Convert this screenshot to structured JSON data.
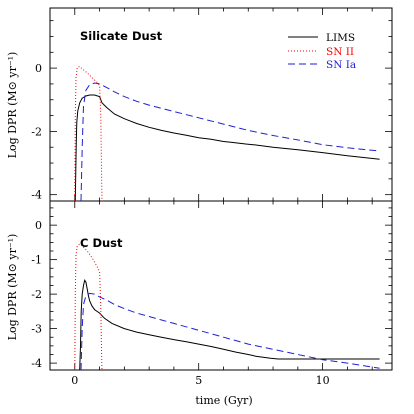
{
  "colors": {
    "lims": "#000000",
    "sn2": "#ff0000",
    "sn1a": "#1f1fd6"
  },
  "chart_data": [
    {
      "type": "line",
      "title": "Silicate Dust",
      "xlabel": "",
      "ylabel": "Log DPR (M⊙ yr⁻¹)",
      "xlim": [
        -1,
        12.8
      ],
      "ylim": [
        -4.2,
        1.9
      ],
      "xticks": [
        0,
        5,
        10
      ],
      "yticks": [
        -4,
        -2,
        0
      ],
      "yminor": 0.5,
      "xminor": 1,
      "legend": "top-right",
      "series": [
        {
          "name": "LIMS",
          "color": "#000000",
          "style": "solid",
          "x": [
            0.02,
            0.04,
            0.06,
            0.08,
            0.12,
            0.2,
            0.3,
            0.45,
            0.6,
            0.8,
            1.0,
            1.1,
            1.3,
            1.6,
            2.0,
            2.5,
            3.0,
            3.5,
            4.0,
            4.5,
            5.0,
            5.5,
            6.0,
            6.3,
            6.6,
            6.9,
            7.2,
            7.5,
            8.0,
            9.0,
            10.0,
            11.0,
            12.3
          ],
          "y": [
            -4.2,
            -3.2,
            -2.3,
            -1.7,
            -1.35,
            -1.1,
            -0.95,
            -0.88,
            -0.85,
            -0.85,
            -0.9,
            -1.1,
            -1.25,
            -1.45,
            -1.6,
            -1.75,
            -1.87,
            -1.97,
            -2.05,
            -2.12,
            -2.2,
            -2.25,
            -2.32,
            -2.34,
            -2.37,
            -2.4,
            -2.42,
            -2.45,
            -2.5,
            -2.58,
            -2.67,
            -2.77,
            -2.88
          ]
        },
        {
          "name": "SN II",
          "color": "#ff0000",
          "style": "dotted",
          "x": [
            0.0,
            0.02,
            0.05,
            0.1,
            0.2,
            0.3,
            0.5,
            0.7,
            0.9,
            1.0,
            1.05,
            1.08,
            1.1
          ],
          "y": [
            -4.2,
            -1.5,
            -0.3,
            0.02,
            0.05,
            -0.02,
            -0.15,
            -0.3,
            -0.45,
            -0.55,
            -1.5,
            -3.2,
            -4.2
          ]
        },
        {
          "name": "SN Ia",
          "color": "#1f1fd6",
          "style": "dashed",
          "x": [
            0.25,
            0.3,
            0.35,
            0.45,
            0.6,
            0.8,
            1.0,
            1.3,
            1.6,
            2.0,
            2.5,
            3.0,
            3.5,
            4.0,
            5.0,
            6.0,
            7.0,
            8.0,
            9.0,
            10.0,
            11.0,
            12.3
          ],
          "y": [
            -4.2,
            -2.5,
            -1.2,
            -0.7,
            -0.52,
            -0.47,
            -0.5,
            -0.62,
            -0.75,
            -0.9,
            -1.05,
            -1.17,
            -1.27,
            -1.37,
            -1.57,
            -1.77,
            -1.97,
            -2.13,
            -2.27,
            -2.42,
            -2.52,
            -2.62
          ]
        }
      ]
    },
    {
      "type": "line",
      "title": "C Dust",
      "xlabel": "time (Gyr)",
      "ylabel": "Log DPR (M⊙ yr⁻¹)",
      "xlim": [
        -1,
        12.8
      ],
      "ylim": [
        -4.2,
        0.7
      ],
      "xticks": [
        0,
        5,
        10
      ],
      "yticks": [
        -4,
        -3,
        -2,
        -1,
        0
      ],
      "yminor": 0.25,
      "xminor": 1,
      "series": [
        {
          "name": "LIMS",
          "color": "#000000",
          "style": "solid",
          "x": [
            0.2,
            0.23,
            0.26,
            0.3,
            0.35,
            0.4,
            0.45,
            0.5,
            0.55,
            0.6,
            0.7,
            0.8,
            1.0,
            1.2,
            1.5,
            2.0,
            2.5,
            3.0,
            3.5,
            4.0,
            4.5,
            5.0,
            5.5,
            6.0,
            6.5,
            7.0,
            7.3,
            7.6,
            7.9,
            8.2,
            8.5,
            9.0,
            10.0,
            11.0,
            12.3
          ],
          "y": [
            -4.2,
            -3.5,
            -2.5,
            -2.0,
            -1.75,
            -1.6,
            -1.65,
            -1.85,
            -2.05,
            -2.2,
            -2.35,
            -2.45,
            -2.55,
            -2.7,
            -2.85,
            -3.0,
            -3.1,
            -3.18,
            -3.25,
            -3.32,
            -3.38,
            -3.45,
            -3.52,
            -3.6,
            -3.68,
            -3.75,
            -3.8,
            -3.83,
            -3.86,
            -3.88,
            -3.88,
            -3.88,
            -3.88,
            -3.88,
            -3.88
          ]
        },
        {
          "name": "SN II",
          "color": "#ff0000",
          "style": "dotted",
          "x": [
            0.0,
            0.02,
            0.05,
            0.1,
            0.2,
            0.3,
            0.5,
            0.7,
            0.9,
            1.0,
            1.05,
            1.08,
            1.1
          ],
          "y": [
            -4.2,
            -2.0,
            -0.85,
            -0.6,
            -0.55,
            -0.6,
            -0.75,
            -0.95,
            -1.2,
            -1.35,
            -2.4,
            -3.6,
            -4.2
          ]
        },
        {
          "name": "SN Ia",
          "color": "#1f1fd6",
          "style": "dashed",
          "x": [
            0.25,
            0.3,
            0.35,
            0.45,
            0.6,
            0.8,
            1.0,
            1.3,
            1.6,
            2.0,
            2.5,
            3.0,
            3.5,
            4.0,
            5.0,
            6.0,
            7.0,
            8.0,
            9.0,
            10.0,
            11.0,
            12.3
          ],
          "y": [
            -4.2,
            -3.0,
            -2.3,
            -2.05,
            -1.98,
            -2.0,
            -2.08,
            -2.18,
            -2.3,
            -2.42,
            -2.55,
            -2.65,
            -2.75,
            -2.85,
            -3.05,
            -3.25,
            -3.45,
            -3.6,
            -3.75,
            -3.9,
            -4.0,
            -4.15
          ]
        }
      ]
    }
  ]
}
